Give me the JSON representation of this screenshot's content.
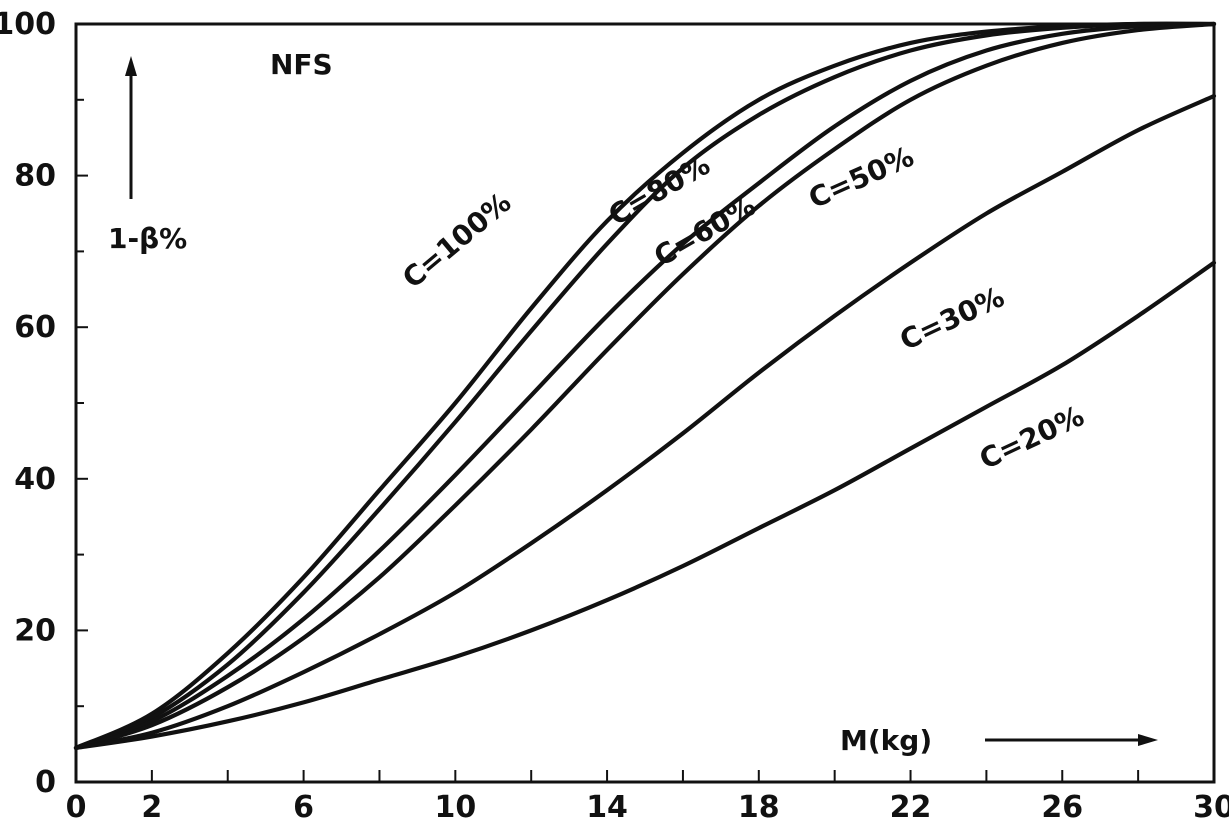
{
  "chart_data": {
    "type": "line",
    "title": "",
    "xlabel": "M(kg)",
    "ylabel": "1-β%",
    "annotation": "NFS",
    "xlim": [
      0,
      30
    ],
    "ylim": [
      0,
      100
    ],
    "x_ticks": [
      0,
      2,
      6,
      10,
      14,
      18,
      22,
      26,
      30
    ],
    "y_ticks": [
      0,
      20,
      40,
      60,
      80,
      100
    ],
    "grid": false,
    "legend": "none",
    "series": [
      {
        "name": "C=100%",
        "label": "C=100%",
        "x": [
          0,
          2,
          4,
          6,
          8,
          10,
          12,
          14,
          16,
          18,
          20,
          22,
          24,
          26,
          28,
          30
        ],
        "y": [
          4.5,
          9,
          17,
          27,
          38.5,
          50,
          62.5,
          74,
          83,
          90,
          94.5,
          97.5,
          99,
          99.7,
          100,
          100
        ]
      },
      {
        "name": "C=80%",
        "label": "C=80%",
        "x": [
          0,
          2,
          4,
          6,
          8,
          10,
          12,
          14,
          16,
          18,
          20,
          22,
          24,
          26,
          28,
          30
        ],
        "y": [
          4.5,
          8.5,
          15.5,
          25,
          36,
          47.5,
          59.5,
          71,
          81,
          88,
          93,
          96.5,
          98.5,
          99.5,
          100,
          100
        ]
      },
      {
        "name": "C=60%",
        "label": "C=60%",
        "x": [
          0,
          2,
          4,
          6,
          8,
          10,
          12,
          14,
          16,
          18,
          20,
          22,
          24,
          26,
          28,
          30
        ],
        "y": [
          4.5,
          8,
          14,
          21.5,
          30.5,
          40.5,
          51,
          61.5,
          71,
          79,
          86.5,
          92.5,
          96.5,
          98.7,
          99.7,
          100
        ]
      },
      {
        "name": "C=50%",
        "label": "C=50%",
        "x": [
          0,
          2,
          4,
          6,
          8,
          10,
          12,
          14,
          16,
          18,
          20,
          22,
          24,
          26,
          28,
          30
        ],
        "y": [
          4.5,
          7.5,
          12.5,
          19,
          27,
          36.5,
          46.5,
          57,
          67,
          76,
          83.5,
          90,
          94.5,
          97.5,
          99.2,
          100
        ]
      },
      {
        "name": "C=30%",
        "label": "C=30%",
        "x": [
          0,
          2,
          4,
          6,
          8,
          10,
          12,
          14,
          16,
          18,
          20,
          22,
          24,
          26,
          28,
          30
        ],
        "y": [
          4.5,
          6.5,
          10,
          14.5,
          19.5,
          25,
          31.5,
          38.5,
          46,
          54,
          61.5,
          68.5,
          75,
          80.5,
          86,
          90.5
        ]
      },
      {
        "name": "C=20%",
        "label": "C=20%",
        "x": [
          0,
          2,
          4,
          6,
          8,
          10,
          12,
          14,
          16,
          18,
          20,
          22,
          24,
          26,
          28,
          30
        ],
        "y": [
          4.5,
          6,
          8,
          10.5,
          13.5,
          16.5,
          20,
          24,
          28.5,
          33.5,
          38.5,
          44,
          49.5,
          55,
          61.5,
          68.5
        ]
      }
    ]
  }
}
